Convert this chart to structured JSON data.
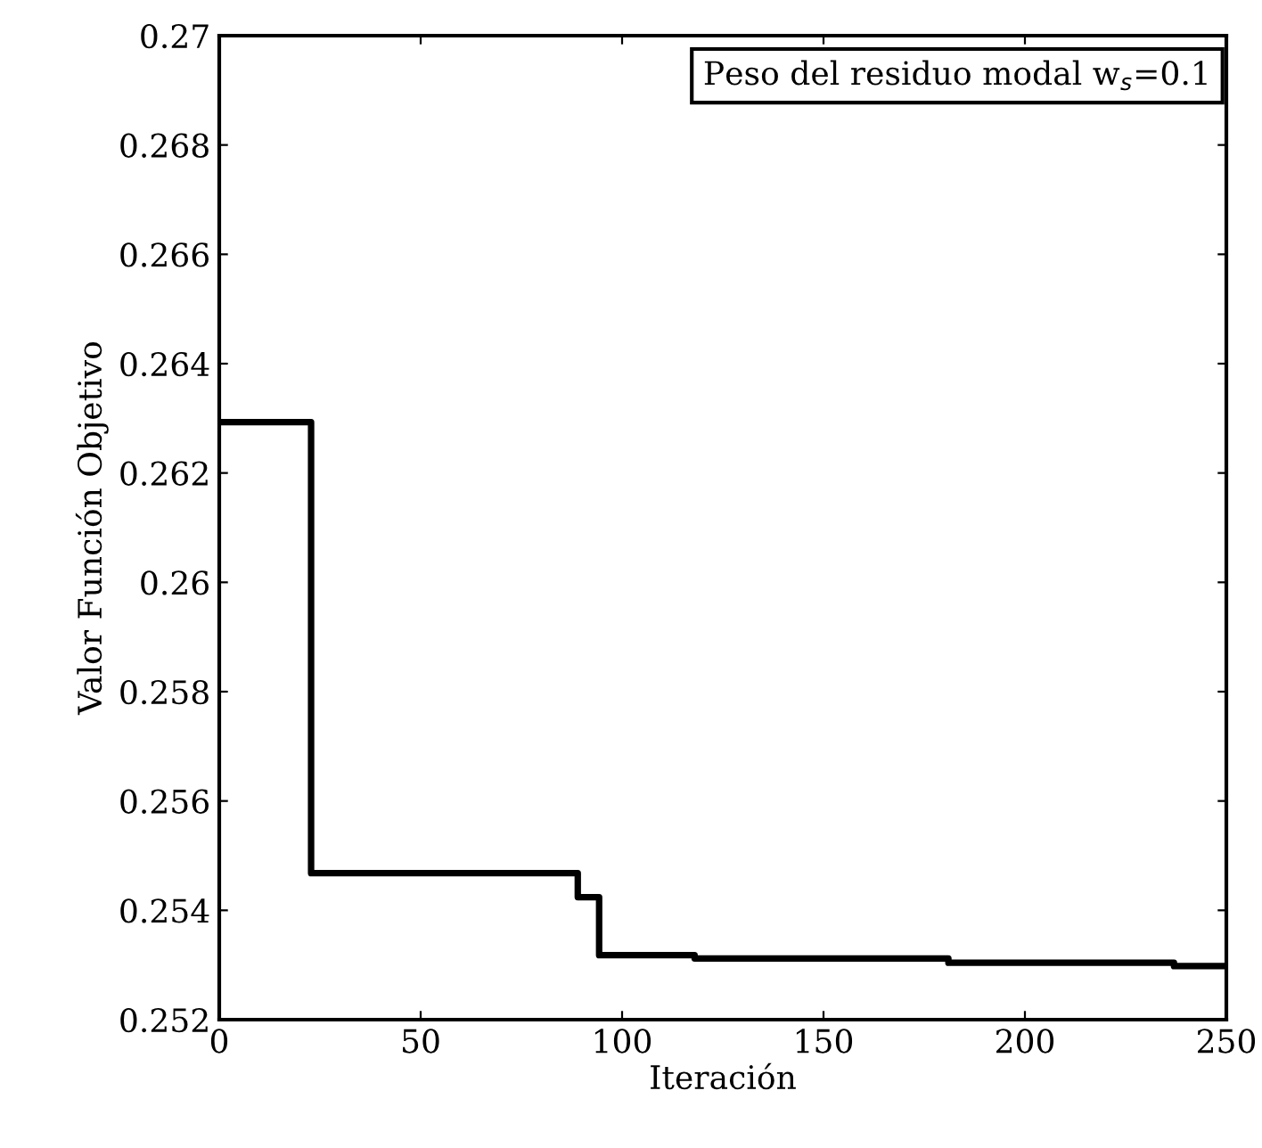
{
  "chart_data": {
    "type": "step",
    "xlabel": "Iteración",
    "ylabel": "Valor Función Objetivo",
    "annotations": [
      "Peso del residuo modal w$_{s}$=0.1"
    ],
    "series": [
      {
        "color": "#000000",
        "x": [
          0,
          22.8,
          89,
          94.3,
          118,
          181,
          237,
          250
        ],
        "values": [
          0.26293,
          0.25468,
          0.25424,
          0.25318,
          0.25312,
          0.25304,
          0.25298,
          0.25298
        ]
      }
    ],
    "xlim": [
      0,
      250
    ],
    "xticks": [
      0,
      50,
      100,
      150,
      200,
      250
    ],
    "ylim": [
      0.252,
      0.27
    ],
    "yticks": [
      {
        "value": 0.252,
        "label": "0.252"
      },
      {
        "value": 0.254,
        "label": "0.254"
      },
      {
        "value": 0.256,
        "label": "0.256"
      },
      {
        "value": 0.258,
        "label": "0.258"
      },
      {
        "value": 0.26,
        "label": "0.26"
      },
      {
        "value": 0.262,
        "label": "0.262"
      },
      {
        "value": 0.264,
        "label": "0.264"
      },
      {
        "value": 0.266,
        "label": "0.266"
      },
      {
        "value": 0.268,
        "label": "0.268"
      },
      {
        "value": 0.27,
        "label": "0.27"
      }
    ],
    "grid": false,
    "legend": false,
    "marker": "none",
    "line_style": "solid"
  }
}
